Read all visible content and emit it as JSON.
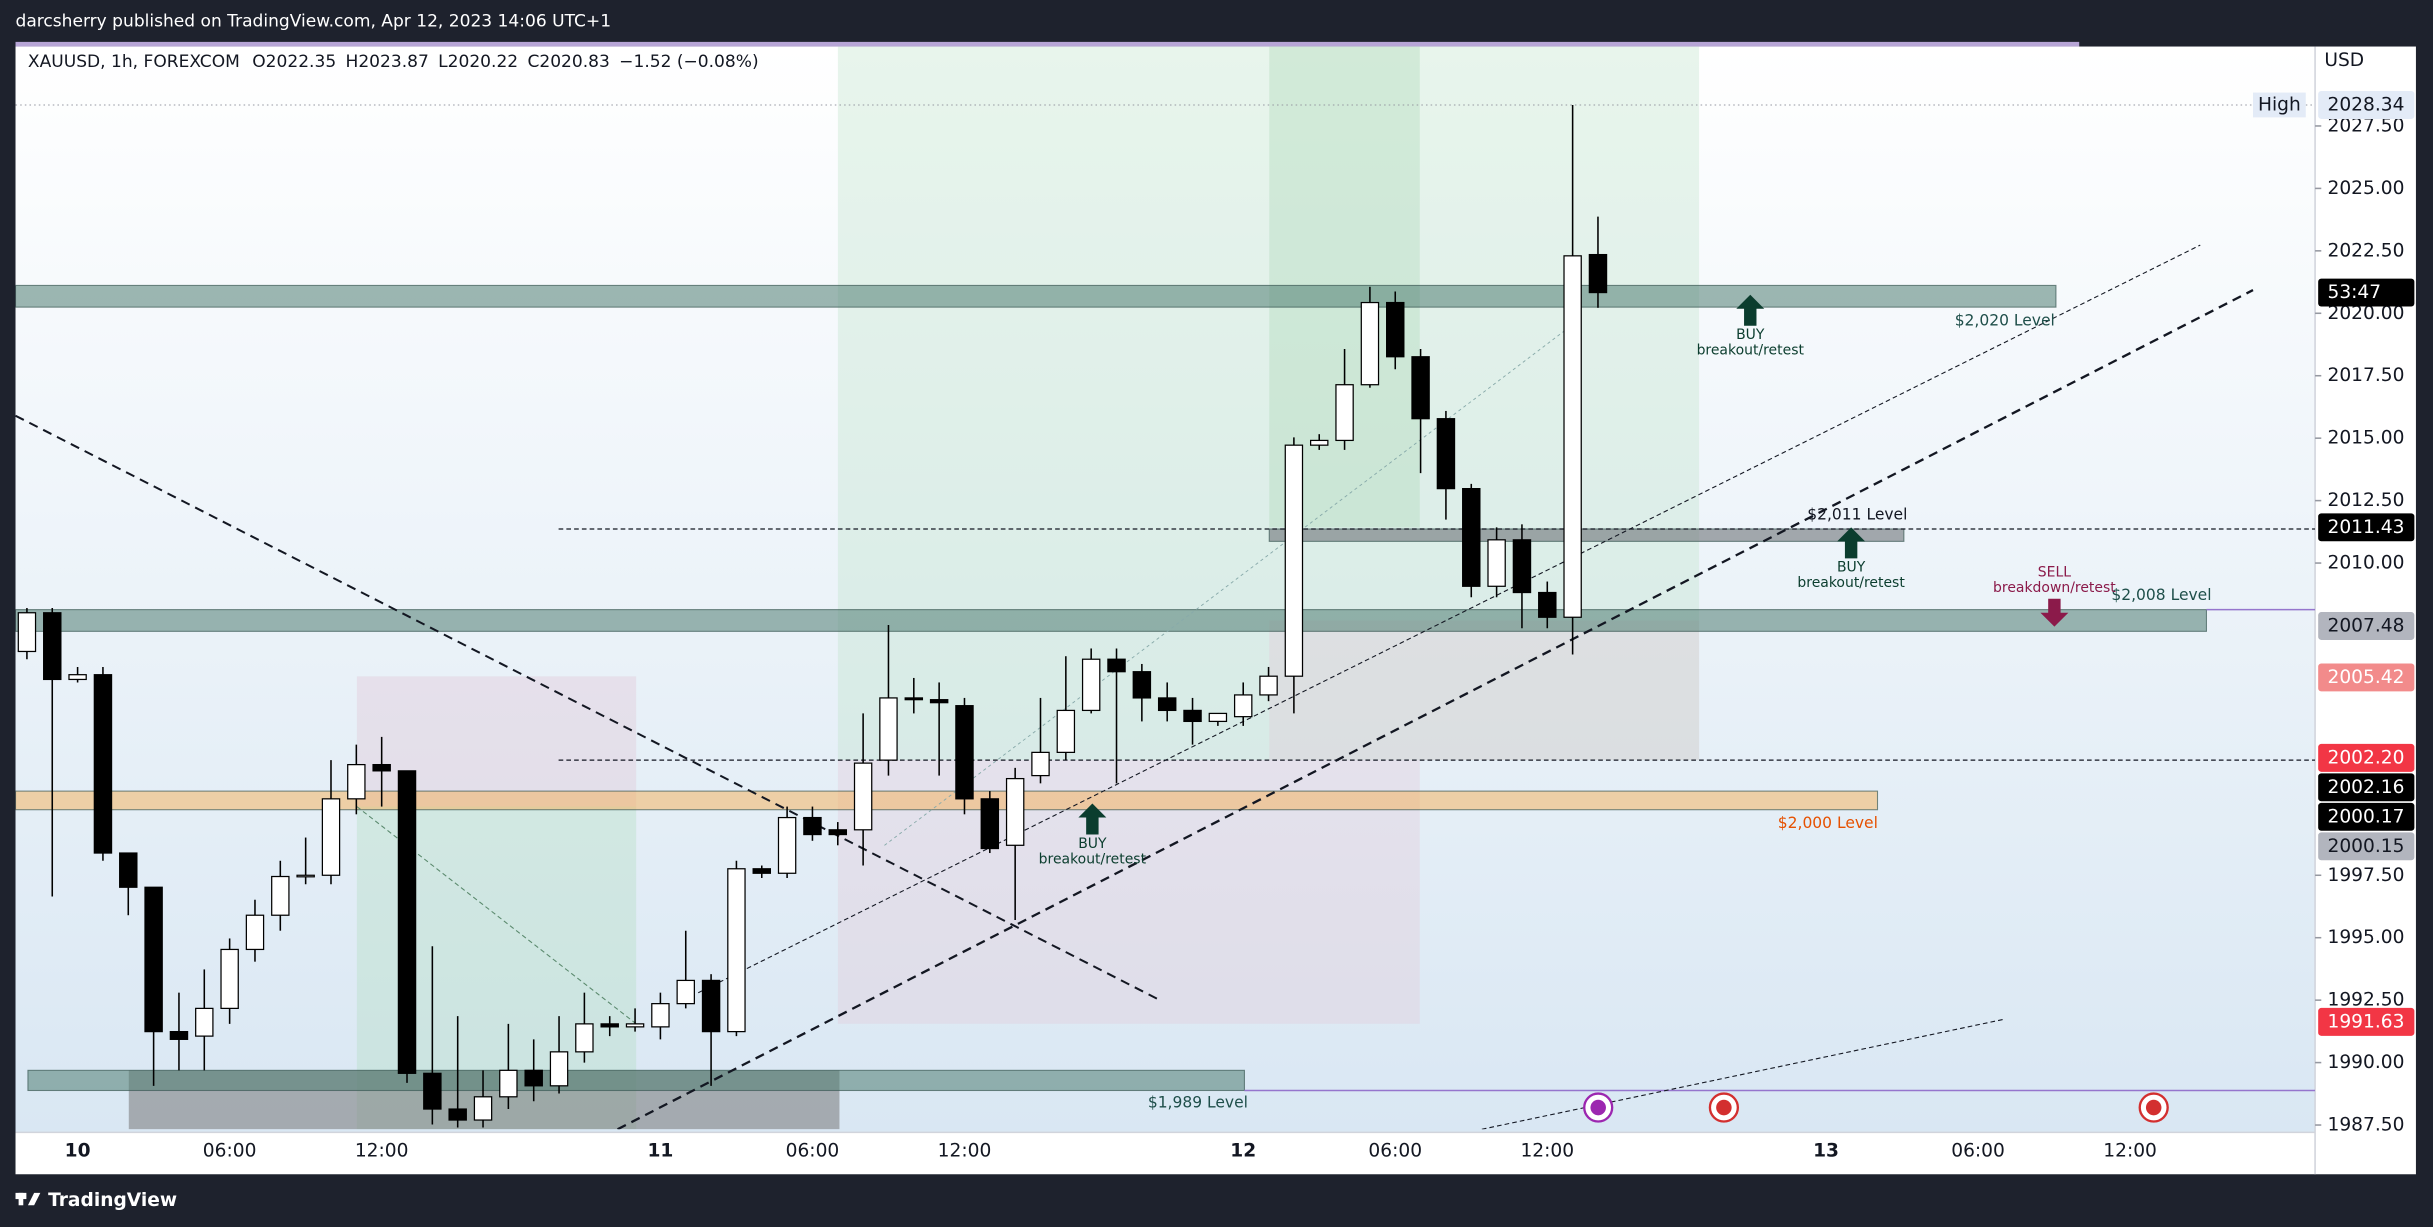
{
  "header": {
    "publisher": "darcsherry published on TradingView.com, Apr 12, 2023 14:06 UTC+1",
    "footer": "TradingView"
  },
  "chart_data": {
    "type": "candlestick",
    "symbol": "XAUUSD, 1h, FOREXCOM",
    "ohlc_labels": [
      "O",
      "H",
      "L",
      "C"
    ],
    "change": "−1.52 (−0.08%)",
    "currency": "USD",
    "up_color": "#ffffff",
    "down_color": "#000000",
    "wick_color": "#000000",
    "candles": {
      "open": [
        2006.46,
        2008.01,
        2005.34,
        2005.53,
        1998.39,
        1997.02,
        1991.24,
        1991.06,
        1992.17,
        1994.53,
        1995.9,
        1997.45,
        1997.5,
        2000.56,
        2001.93,
        2001.68,
        1989.57,
        1988.14,
        1987.7,
        1988.63,
        1989.69,
        1989.07,
        1990.43,
        1991.55,
        1991.43,
        1991.43,
        1992.36,
        1993.29,
        1991.24,
        1997.76,
        1997.58,
        1999.81,
        1999.32,
        1999.32,
        2002.11,
        2004.6,
        2004.53,
        2004.29,
        2000.56,
        1998.7,
        2001.49,
        2002.42,
        2004.1,
        2006.15,
        2005.65,
        2004.6,
        2004.1,
        2003.66,
        2003.85,
        2004.72,
        2005.47,
        2014.72,
        2014.91,
        2017.14,
        2020.43,
        2018.26,
        2015.78,
        2012.98,
        2009.07,
        2010.93,
        2008.82,
        2007.83,
        2022.35
      ],
      "high": [
        2008.2,
        2008.2,
        2005.84,
        2005.84,
        1998.39,
        1997.02,
        1992.8,
        1993.73,
        1994.97,
        1996.52,
        1998.08,
        1999.01,
        2002.11,
        2002.73,
        2003.04,
        2001.68,
        1994.66,
        1991.86,
        1989.69,
        1991.55,
        1990.93,
        1991.86,
        1992.8,
        1991.86,
        1992.17,
        1992.8,
        1995.28,
        1993.54,
        1998.08,
        1997.89,
        2000.25,
        2000.25,
        1999.63,
        2003.98,
        2007.52,
        2005.4,
        2005.22,
        2004.6,
        2000.87,
        2001.8,
        2004.6,
        2006.27,
        2006.58,
        2006.58,
        2005.96,
        2005.22,
        2004.6,
        2003.98,
        2005.22,
        2005.84,
        2015.03,
        2015.16,
        2018.57,
        2021.06,
        2020.87,
        2018.57,
        2016.09,
        2013.17,
        2011.43,
        2011.55,
        2009.26,
        2028.34,
        2023.87
      ],
      "low": [
        2006.15,
        1996.65,
        2005.22,
        1998.08,
        1995.9,
        1989.07,
        1989.69,
        1989.69,
        1991.55,
        1994.04,
        1995.28,
        1997.14,
        1997.14,
        1999.94,
        2000.25,
        1989.19,
        1987.52,
        1987.4,
        1987.4,
        1988.14,
        1988.45,
        1988.76,
        1990.0,
        1991.06,
        1991.24,
        1990.93,
        1992.17,
        1989.07,
        1991.06,
        1997.39,
        1997.39,
        1998.88,
        1998.7,
        1997.89,
        2001.49,
        2003.98,
        2001.49,
        1999.94,
        1998.39,
        1995.71,
        2001.18,
        2002.11,
        2003.98,
        2001.18,
        2003.66,
        2003.66,
        2002.73,
        2003.48,
        2003.48,
        2004.47,
        2003.98,
        2014.53,
        2014.53,
        2017.02,
        2017.76,
        2013.6,
        2011.74,
        2008.63,
        2008.63,
        2007.39,
        2007.39,
        2006.34,
        2020.22
      ],
      "close": [
        2008.01,
        2005.34,
        2005.53,
        1998.39,
        1997.02,
        1991.24,
        1990.93,
        1992.17,
        1994.53,
        1995.9,
        1997.45,
        1997.5,
        2000.56,
        2001.93,
        2001.68,
        1989.57,
        1988.14,
        1987.7,
        1988.63,
        1989.69,
        1989.07,
        1990.43,
        1991.55,
        1991.43,
        1991.55,
        1992.36,
        1993.29,
        1991.24,
        1997.76,
        1997.58,
        1999.81,
        1999.13,
        1999.13,
        2001.99,
        2004.6,
        2004.53,
        2004.41,
        2000.56,
        1998.57,
        2001.37,
        2002.42,
        2004.1,
        2006.15,
        2005.65,
        2004.6,
        2004.1,
        2003.66,
        2003.98,
        2004.72,
        2005.47,
        2014.72,
        2014.91,
        2017.14,
        2020.43,
        2018.26,
        2015.78,
        2012.98,
        2009.07,
        2010.93,
        2008.82,
        2007.83,
        2022.3,
        2020.83
      ]
    },
    "xlim": [
      -0.45,
      90.3
    ],
    "xticks": [
      {
        "value": 2,
        "label": "10"
      },
      {
        "value": 8,
        "label": "06:00"
      },
      {
        "value": 14,
        "label": "12:00"
      },
      {
        "value": 25,
        "label": "11"
      },
      {
        "value": 31,
        "label": "06:00"
      },
      {
        "value": 37,
        "label": "12:00"
      },
      {
        "value": 48,
        "label": "12"
      },
      {
        "value": 54,
        "label": "06:00"
      },
      {
        "value": 60,
        "label": "12:00"
      },
      {
        "value": 71,
        "label": "13"
      },
      {
        "value": 77,
        "label": "06:00"
      },
      {
        "value": 83,
        "label": "12:00"
      }
    ],
    "ylim": [
      1987.33,
      2030.68
    ],
    "yticks": [
      {
        "value": 2027.5,
        "label": "2027.50"
      },
      {
        "value": 2025,
        "label": "2025.00"
      },
      {
        "value": 2022.5,
        "label": "2022.50"
      },
      {
        "value": 2020,
        "label": "2020.00"
      },
      {
        "value": 2017.5,
        "label": "2017.50"
      },
      {
        "value": 2015,
        "label": "2015.00"
      },
      {
        "value": 2012.5,
        "label": "2012.50"
      },
      {
        "value": 2010,
        "label": "2010.00"
      },
      {
        "value": 1997.5,
        "label": "1997.50"
      },
      {
        "value": 1995,
        "label": "1995.00"
      },
      {
        "value": 1992.5,
        "label": "1992.50"
      },
      {
        "value": 1990,
        "label": "1990.00"
      },
      {
        "value": 1987.5,
        "label": "1987.50"
      }
    ],
    "high_label": "High",
    "timer": "53:47",
    "price_labels": [
      {
        "value": 2028.34,
        "color": "#e3ebf7",
        "text_color": "#131722"
      },
      {
        "value": 2011.43,
        "color": "#000000",
        "text_color": "#ffffff"
      },
      {
        "value": 2007.48,
        "color": "#b2b5be",
        "text_color": "#131722"
      },
      {
        "value": 2005.42,
        "color": "#f28b8b",
        "text_color": "#ffffff"
      },
      {
        "value": {
          "value": 2002.2,
          "label": "2002.20"
        },
        "color": "#f23645",
        "text_color": "#ffffff"
      },
      {
        "value": 2002.16,
        "color": "#000000",
        "text_color": "#ffffff"
      },
      {
        "value": 2000.17,
        "color": "#000000",
        "text_color": "#ffffff"
      },
      {
        "value": 2000.15,
        "color": "#b2b5be",
        "text_color": "#131722"
      },
      {
        "value": 1991.63,
        "color": "#f23645",
        "text_color": "#ffffff"
      }
    ],
    "level_labels": [
      {
        "text": "$2,020 Level",
        "color": "#1f4f4a"
      },
      {
        "text": "$2,011 Level",
        "color": "#131722"
      },
      {
        "text": "$2,008 Level",
        "color": "#1f4f4a"
      },
      {
        "text": "$2,000 Level",
        "color": "#e65100"
      },
      {
        "text": "$1,989 Level",
        "color": "#1f4f4a"
      }
    ],
    "signals": [
      {
        "action": "BUY",
        "setup": "breakout/retest",
        "color": "#0b3d2e"
      },
      {
        "action": "BUY",
        "setup": "breakout/retest",
        "color": "#0b3d2e"
      },
      {
        "action": "BUY",
        "setup": "breakout/retest",
        "color": "#0b3d2e"
      },
      {
        "action": "SELL",
        "setup": "breakdown/retest",
        "color": "#8b1a4a"
      }
    ]
  }
}
